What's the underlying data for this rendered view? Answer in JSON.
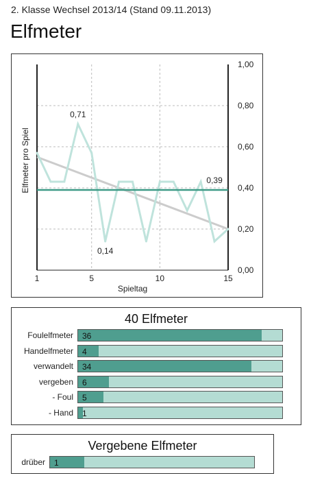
{
  "header": {
    "subtitle": "2. Klasse Wechsel 2013/14 (Stand 09.11.2013)",
    "title": "Elfmeter"
  },
  "colors": {
    "series_line": "#bfe3dc",
    "trend_line": "#cccccc",
    "average_line": "#3d9a86",
    "bar_fill": "#4f9e8f",
    "bar_track": "#b4dcd3"
  },
  "chart_data": [
    {
      "type": "line",
      "title": "",
      "xlabel": "Spieltag",
      "ylabel": "Elfmeter pro Spiel",
      "x_ticks": [
        "1",
        "5",
        "10",
        "15"
      ],
      "y_ticks": [
        "0,00",
        "0,20",
        "0,40",
        "0,60",
        "0,80",
        "1,00"
      ],
      "xlim": [
        1,
        15
      ],
      "ylim": [
        0,
        1
      ],
      "grid": true,
      "x": [
        1,
        2,
        3,
        4,
        5,
        6,
        7,
        8,
        9,
        10,
        11,
        12,
        13,
        14,
        15
      ],
      "series": [
        {
          "values": [
            0.57,
            0.43,
            0.43,
            0.71,
            0.57,
            0.14,
            0.43,
            0.43,
            0.14,
            0.43,
            0.43,
            0.29,
            0.43,
            0.14,
            0.2
          ]
        }
      ],
      "trend": [
        0.55,
        0.2
      ],
      "average": 0.39,
      "annotations": [
        {
          "label": "0,71",
          "x": 4,
          "y": 0.71
        },
        {
          "label": "0,14",
          "x": 6,
          "y": 0.14
        },
        {
          "label": "0,39",
          "x": 14,
          "y": 0.39
        }
      ]
    },
    {
      "type": "bar",
      "title": "40 Elfmeter",
      "categories": [
        "Foulelfmeter",
        "Handelfmeter",
        "verwandelt",
        "vergeben",
        "- Foul",
        "- Hand"
      ],
      "values": [
        36,
        4,
        34,
        6,
        5,
        1
      ],
      "value_labels": [
        "36",
        "4",
        "34",
        "6",
        "5",
        "1"
      ],
      "max": 40
    },
    {
      "type": "bar",
      "title": "Vergebene Elfmeter",
      "categories": [
        "drüber"
      ],
      "values": [
        1
      ],
      "value_labels": [
        "1"
      ],
      "max": 6
    }
  ]
}
